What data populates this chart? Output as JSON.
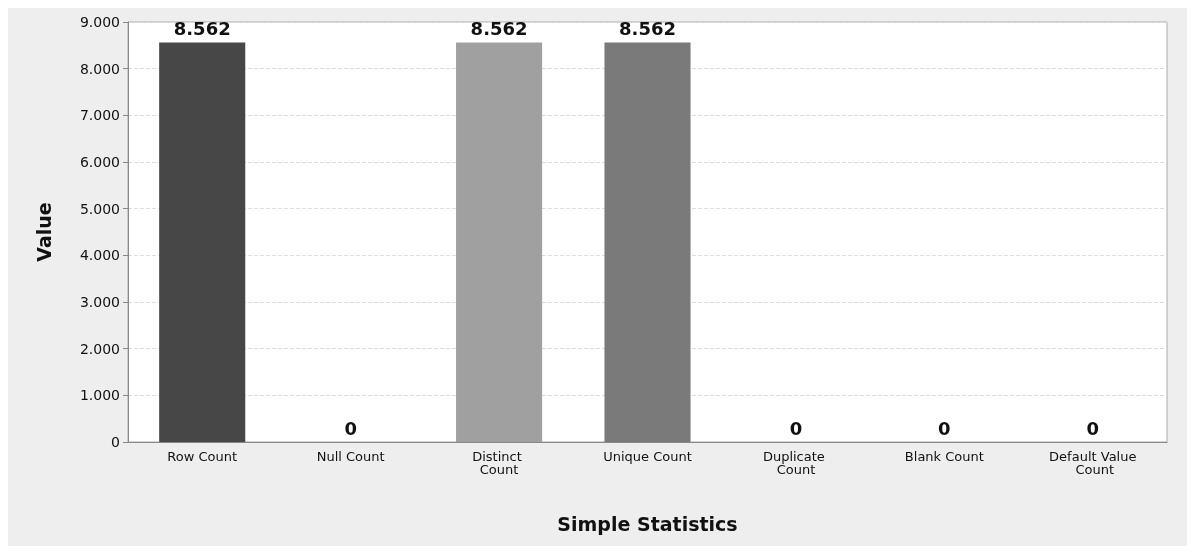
{
  "chart_data": {
    "type": "bar",
    "xlabel": "Simple Statistics",
    "ylabel": "Value",
    "categories": [
      "Row Count",
      "Null Count",
      "Distinct Count",
      "Unique Count",
      "Duplicate Count",
      "Blank Count",
      "Default Value Count"
    ],
    "values": [
      8562,
      0,
      8562,
      8562,
      0,
      0,
      0
    ],
    "colors": [
      "#474747",
      "#5a5a5a",
      "#a0a0a0",
      "#7a7a7a",
      "#8c8c8c",
      "#b0b0b0",
      "#c0c0c0"
    ],
    "value_labels": [
      "8.562",
      "0",
      "8.562",
      "8.562",
      "0",
      "0",
      "0"
    ],
    "ylim": [
      0,
      9000
    ],
    "yticks": [
      0,
      {
        "value": 1000,
        "label": "1.000"
      },
      {
        "value": 2000,
        "label": "2.000"
      },
      {
        "value": 3000,
        "label": "3.000"
      },
      {
        "value": 4000,
        "label": "4.000"
      },
      {
        "value": 5000,
        "label": "5.000"
      },
      {
        "value": 6000,
        "label": "6.000"
      },
      {
        "value": 7000,
        "label": "7.000"
      },
      {
        "value": 8000,
        "label": "8.000"
      },
      {
        "value": 9000,
        "label": "9.000"
      }
    ],
    "grid": "y"
  }
}
